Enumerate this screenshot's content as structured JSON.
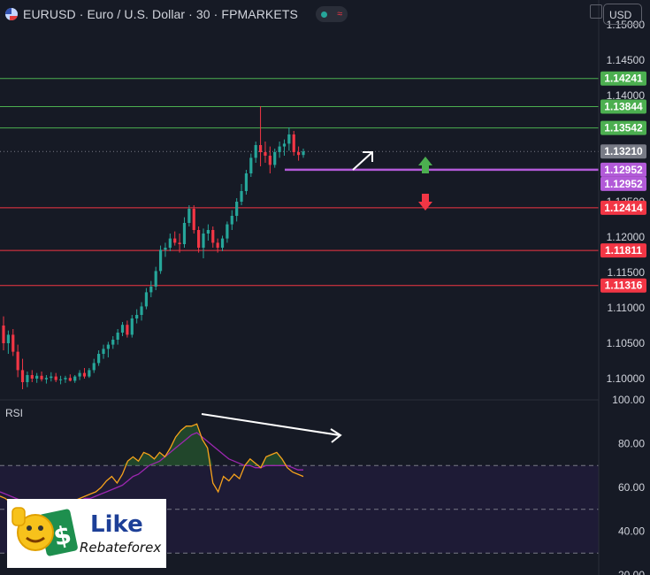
{
  "header": {
    "symbol_title": "EURUSD · Euro / U.S. Dollar · 30 · FPMARKETS",
    "currency": "USD"
  },
  "colors": {
    "background": "#161a25",
    "bull": "#26a69a",
    "bear": "#f23645",
    "support_line": "#4caf50",
    "resistance_line": "#f23645",
    "purple": "#b25ad8",
    "rsi_line": "#f7a21b",
    "rsi_ma": "#9c27b0"
  },
  "chart_data": [
    {
      "type": "candlestick",
      "symbol": "EURUSD",
      "timeframe": "30",
      "ylim": [
        1.097,
        1.1535
      ],
      "y_ticks": [
        1.15,
        1.145,
        1.14,
        1.135,
        1.13,
        1.125,
        1.12,
        1.115,
        1.11,
        1.105,
        1.1
      ],
      "y_tick_labels": [
        "1.15000",
        "1.14500",
        "1.14000",
        "",
        "",
        "1.12500",
        "1.12000",
        "1.11500",
        "1.11000",
        "1.10500",
        "1.10000"
      ],
      "horizontal_levels": [
        {
          "value": 1.14241,
          "label": "1.14241",
          "kind": "green"
        },
        {
          "value": 1.13844,
          "label": "1.13844",
          "kind": "green"
        },
        {
          "value": 1.13542,
          "label": "1.13542",
          "kind": "green"
        },
        {
          "value": 1.12952,
          "label": "1.12952",
          "kind": "purple"
        },
        {
          "value": 1.12414,
          "label": "1.12414",
          "kind": "red"
        },
        {
          "value": 1.11811,
          "label": "1.11811",
          "kind": "red"
        },
        {
          "value": 1.11316,
          "label": "1.11316",
          "kind": "red"
        }
      ],
      "last_price": {
        "value": 1.1321,
        "label": "1.13210"
      },
      "extra_label": {
        "value": 1.12952,
        "label": "1.12952"
      },
      "candles": [
        [
          1.1075,
          1.1088,
          1.104,
          1.105
        ],
        [
          1.105,
          1.1068,
          1.1035,
          1.1062
        ],
        [
          1.1062,
          1.107,
          1.1032,
          1.1038
        ],
        [
          1.1038,
          1.1048,
          1.1002,
          1.1012
        ],
        [
          1.1012,
          1.1028,
          1.0985,
          1.0995
        ],
        [
          1.0995,
          1.101,
          1.0988,
          1.1005
        ],
        [
          1.1005,
          1.1012,
          1.0995,
          1.1
        ],
        [
          1.1,
          1.1008,
          1.0994,
          1.1004
        ],
        [
          1.1004,
          1.101,
          1.0996,
          1.0999
        ],
        [
          1.0999,
          1.1005,
          1.0993,
          1.1001
        ],
        [
          1.1001,
          1.1009,
          1.0996,
          1.1003
        ],
        [
          1.1003,
          1.1008,
          1.0995,
          1.0998
        ],
        [
          1.0998,
          1.1004,
          1.0992,
          1.0999
        ],
        [
          1.0999,
          1.1004,
          1.0994,
          1.1001
        ],
        [
          1.1001,
          1.1006,
          1.0996,
          1.0997
        ],
        [
          1.0997,
          1.1005,
          1.0994,
          1.1003
        ],
        [
          1.1003,
          1.1012,
          1.0998,
          1.1008
        ],
        [
          1.1008,
          1.1015,
          1.1,
          1.1003
        ],
        [
          1.1003,
          1.1015,
          1.1001,
          1.1012
        ],
        [
          1.1012,
          1.1028,
          1.1008,
          1.1022
        ],
        [
          1.1022,
          1.104,
          1.1018,
          1.1035
        ],
        [
          1.1035,
          1.1048,
          1.1028,
          1.1042
        ],
        [
          1.1042,
          1.1052,
          1.103,
          1.1048
        ],
        [
          1.1048,
          1.106,
          1.1042,
          1.1055
        ],
        [
          1.1055,
          1.107,
          1.1048,
          1.1065
        ],
        [
          1.1065,
          1.108,
          1.106,
          1.1076
        ],
        [
          1.1076,
          1.1082,
          1.1058,
          1.1062
        ],
        [
          1.1062,
          1.109,
          1.1058,
          1.1085
        ],
        [
          1.1085,
          1.1098,
          1.1078,
          1.109
        ],
        [
          1.109,
          1.1108,
          1.1082,
          1.1102
        ],
        [
          1.1102,
          1.1128,
          1.1098,
          1.1122
        ],
        [
          1.1122,
          1.1138,
          1.1115,
          1.113
        ],
        [
          1.113,
          1.1158,
          1.1125,
          1.1152
        ],
        [
          1.1152,
          1.1188,
          1.1148,
          1.1182
        ],
        [
          1.1182,
          1.1192,
          1.1172,
          1.1185
        ],
        [
          1.1185,
          1.1205,
          1.118,
          1.1198
        ],
        [
          1.1198,
          1.1208,
          1.1188,
          1.1192
        ],
        [
          1.1192,
          1.1205,
          1.1178,
          1.119
        ],
        [
          1.119,
          1.1228,
          1.1185,
          1.122
        ],
        [
          1.122,
          1.1245,
          1.1215,
          1.124
        ],
        [
          1.124,
          1.1245,
          1.1205,
          1.121
        ],
        [
          1.121,
          1.1215,
          1.1178,
          1.1185
        ],
        [
          1.1185,
          1.1212,
          1.117,
          1.1205
        ],
        [
          1.1205,
          1.1218,
          1.1195,
          1.121
        ],
        [
          1.121,
          1.1215,
          1.1185,
          1.1192
        ],
        [
          1.1192,
          1.1198,
          1.1178,
          1.1185
        ],
        [
          1.1185,
          1.1202,
          1.118,
          1.1198
        ],
        [
          1.1198,
          1.1222,
          1.1192,
          1.1218
        ],
        [
          1.1218,
          1.1238,
          1.121,
          1.123
        ],
        [
          1.123,
          1.1255,
          1.1222,
          1.125
        ],
        [
          1.125,
          1.1275,
          1.1245,
          1.1265
        ],
        [
          1.1265,
          1.1295,
          1.126,
          1.129
        ],
        [
          1.129,
          1.1318,
          1.1285,
          1.1312
        ],
        [
          1.1312,
          1.1335,
          1.1305,
          1.133
        ],
        [
          1.133,
          1.1385,
          1.13,
          1.132
        ],
        [
          1.132,
          1.1335,
          1.1305,
          1.1315
        ],
        [
          1.1315,
          1.1328,
          1.129,
          1.1302
        ],
        [
          1.1302,
          1.1325,
          1.1298,
          1.132
        ],
        [
          1.132,
          1.1335,
          1.1312,
          1.1328
        ],
        [
          1.1328,
          1.1338,
          1.1315,
          1.1332
        ],
        [
          1.1332,
          1.1355,
          1.1322,
          1.1345
        ],
        [
          1.1345,
          1.135,
          1.1315,
          1.132
        ],
        [
          1.132,
          1.1328,
          1.1308,
          1.1316
        ],
        [
          1.1316,
          1.1325,
          1.1312,
          1.1321
        ]
      ]
    },
    {
      "type": "line",
      "name": "RSI",
      "ylim": [
        20,
        100
      ],
      "y_ticks": [
        100,
        80,
        60,
        40,
        20
      ],
      "y_tick_labels": [
        "100.00",
        "80.00",
        "60.00",
        "40.00",
        "20.00"
      ],
      "bands": [
        70,
        50,
        30
      ],
      "series": [
        {
          "values": [
            56,
            55,
            53,
            50,
            48,
            47,
            45,
            44,
            43,
            44,
            46,
            48,
            50,
            52,
            54,
            55,
            56,
            57,
            58,
            60,
            63,
            65,
            62,
            66,
            72,
            74,
            72,
            76,
            75,
            73,
            76,
            74,
            78,
            83,
            86,
            88,
            88,
            89,
            82,
            78,
            62,
            58,
            65,
            63,
            66,
            64,
            70,
            73,
            71,
            69,
            74,
            75,
            76,
            73,
            69,
            67,
            66,
            65
          ]
        },
        {
          "values": [
            58,
            57,
            56,
            55,
            54,
            53,
            52,
            51,
            50,
            50,
            50,
            50,
            51,
            52,
            53,
            54,
            55,
            55,
            56,
            57,
            58,
            59,
            60,
            61,
            63,
            65,
            66,
            68,
            70,
            71,
            72,
            74,
            76,
            78,
            80,
            82,
            84,
            85,
            83,
            81,
            79,
            77,
            75,
            73,
            72,
            71,
            70,
            70,
            69,
            69,
            70,
            70,
            70,
            70,
            70,
            69,
            68,
            68
          ]
        }
      ]
    }
  ],
  "rsi": {
    "label": "RSI"
  },
  "logo": {
    "like": "Like",
    "name": "Rebateforex"
  }
}
